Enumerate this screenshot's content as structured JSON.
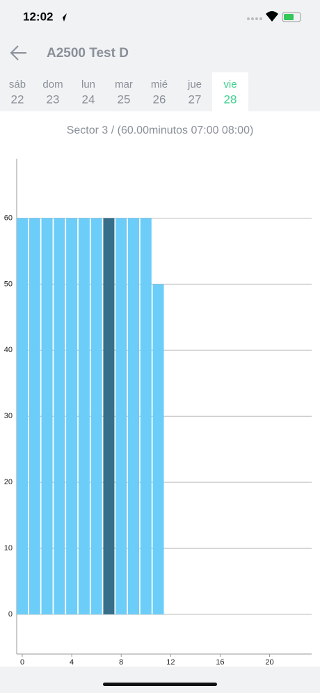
{
  "status_bar": {
    "time": "12:02"
  },
  "header": {
    "title": "A2500 Test D"
  },
  "tabs": [
    {
      "day": "sáb",
      "date": "22"
    },
    {
      "day": "dom",
      "date": "23"
    },
    {
      "day": "lun",
      "date": "24"
    },
    {
      "day": "mar",
      "date": "25"
    },
    {
      "day": "mié",
      "date": "26"
    },
    {
      "day": "jue",
      "date": "27"
    },
    {
      "day": "vie",
      "date": "28"
    }
  ],
  "selected_tab": 6,
  "subtitle": "Sector 3 / (60.00minutos 07:00 08:00)",
  "chart_data": {
    "type": "bar",
    "x": [
      0,
      1,
      2,
      3,
      4,
      5,
      6,
      7,
      8,
      9,
      10,
      11
    ],
    "series": [
      {
        "color": "#6ccdf8",
        "highlight_color": "#376f8a",
        "highlight_index": 7,
        "values": [
          60,
          60,
          60,
          60,
          60,
          60,
          60,
          60,
          60,
          60,
          60,
          50
        ]
      }
    ],
    "xlim": [
      -0.45,
      23.4
    ],
    "xticks": [
      0,
      4,
      8,
      12,
      16,
      20
    ],
    "ylim": [
      -6,
      69
    ],
    "yticks": [
      0,
      10,
      20,
      30,
      40,
      50,
      60
    ],
    "grid": true
  }
}
